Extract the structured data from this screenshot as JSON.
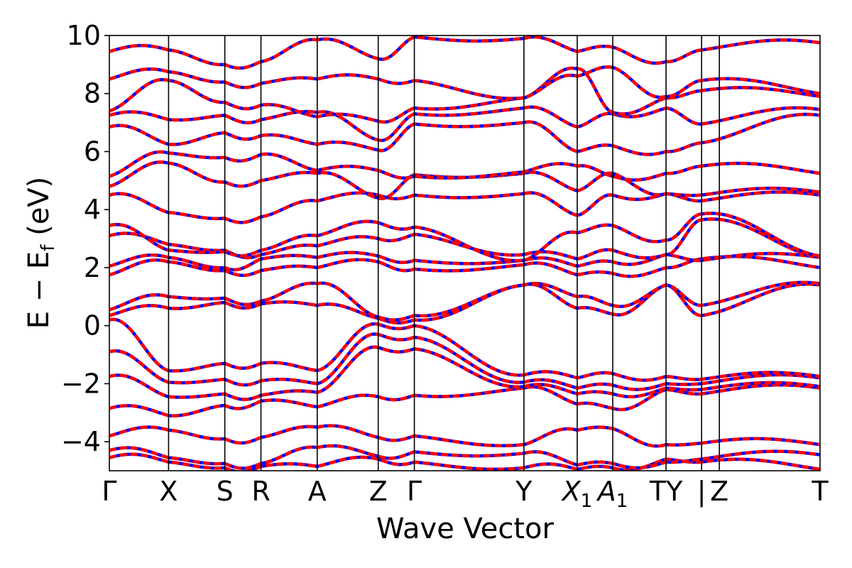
{
  "chart_data": {
    "type": "line",
    "title": "",
    "xlabel": "Wave Vector",
    "ylabel": "E − E_f (eV)",
    "ylabel_main": "E − E",
    "ylabel_sub": "f",
    "ylabel_unit": " (eV)",
    "ylim": [
      -5,
      10
    ],
    "yticks": [
      10,
      8,
      6,
      4,
      2,
      0,
      -2,
      -4
    ],
    "ytick_labels": [
      "10",
      "8",
      "6",
      "4",
      "2",
      "0",
      "−2",
      "−4"
    ],
    "grid": false,
    "legend": "none",
    "series_colors": {
      "outer": "#0000ff",
      "inner": "#ff0000"
    },
    "kpoints": [
      {
        "label": "Γ",
        "x": 0.0
      },
      {
        "label": "X",
        "x": 1.0
      },
      {
        "label": "S",
        "x": 1.95
      },
      {
        "label": "R",
        "x": 2.56
      },
      {
        "label": "A",
        "x": 3.51
      },
      {
        "label": "Z",
        "x": 4.54
      },
      {
        "label": "Γ",
        "x": 5.15
      },
      {
        "label": "Y",
        "x": 7.0
      },
      {
        "label": "X",
        "sub": "1",
        "x": 7.9
      },
      {
        "label": "A",
        "sub": "1",
        "x": 8.5
      },
      {
        "label": "TY",
        "x": 9.4
      },
      {
        "label": "|",
        "x": 10.0
      },
      {
        "label": "Z",
        "x": 10.3
      },
      {
        "label": "T",
        "x": 12.0
      }
    ],
    "segment_breaks": [
      1.0,
      1.95,
      2.56,
      3.51,
      4.54,
      5.15,
      7.0,
      7.9,
      8.5,
      9.4,
      10.0
    ],
    "xlim": [
      0,
      12
    ],
    "bands": [
      [
        -4.55,
        -4.7,
        -4.9,
        -4.85,
        -4.85,
        -4.6,
        -4.7,
        -4.9,
        -4.95,
        -4.9,
        -4.6,
        -4.7,
        -4.95
      ],
      [
        -4.3,
        -4.55,
        -4.75,
        -4.75,
        -4.2,
        -4.5,
        -4.35,
        -4.4,
        -4.8,
        -4.75,
        -4.7,
        -4.6,
        -4.45
      ],
      [
        -3.8,
        -3.6,
        -3.9,
        -3.85,
        -3.5,
        -3.85,
        -3.8,
        -4.1,
        -3.6,
        -3.55,
        -4.1,
        -4.05,
        -4.1
      ],
      [
        -2.85,
        -3.1,
        -2.75,
        -2.6,
        -2.8,
        -2.45,
        -2.4,
        -2.15,
        -2.7,
        -2.85,
        -2.2,
        -2.35,
        -2.15
      ],
      [
        -1.75,
        -2.45,
        -2.35,
        -2.4,
        -2.3,
        -0.75,
        -0.8,
        -2.1,
        -2.35,
        -2.35,
        -2.15,
        -2.2,
        -2.1
      ],
      [
        -0.9,
        -1.95,
        -1.85,
        -1.9,
        -2.0,
        -0.3,
        -0.4,
        -1.95,
        -2.15,
        -2.05,
        -2.0,
        -2.0,
        -1.8
      ],
      [
        0.2,
        -1.55,
        -1.3,
        -1.3,
        -1.55,
        0.05,
        0.0,
        -1.7,
        -1.8,
        -1.65,
        -1.75,
        -1.85,
        -1.75
      ],
      [
        0.35,
        0.6,
        0.8,
        0.75,
        0.7,
        0.25,
        0.2,
        1.4,
        0.6,
        0.4,
        1.4,
        0.35,
        1.4
      ],
      [
        0.55,
        1.0,
        0.95,
        0.85,
        1.45,
        0.3,
        0.35,
        1.4,
        1.0,
        0.7,
        1.4,
        0.7,
        1.45
      ],
      [
        1.75,
        2.2,
        1.9,
        1.9,
        2.0,
        2.2,
        1.95,
        2.1,
        1.75,
        1.8,
        2.0,
        2.3,
        2.0
      ],
      [
        2.05,
        2.35,
        2.0,
        2.3,
        2.35,
        2.4,
        2.25,
        2.25,
        2.05,
        2.2,
        2.45,
        2.25,
        2.35
      ],
      [
        3.1,
        2.8,
        2.6,
        2.45,
        2.75,
        3.0,
        3.15,
        2.45,
        2.3,
        2.6,
        2.45,
        3.65,
        2.35
      ],
      [
        3.45,
        2.6,
        2.55,
        2.6,
        3.1,
        3.55,
        3.4,
        2.25,
        3.2,
        3.45,
        2.95,
        3.85,
        2.4
      ],
      [
        4.5,
        3.9,
        3.7,
        3.75,
        4.3,
        4.5,
        4.5,
        4.55,
        3.8,
        4.5,
        4.55,
        4.3,
        4.5
      ],
      [
        4.8,
        5.6,
        4.95,
        5.0,
        5.25,
        4.4,
        5.2,
        5.25,
        4.65,
        5.25,
        4.55,
        4.5,
        4.6
      ],
      [
        5.15,
        5.95,
        5.8,
        5.9,
        5.35,
        5.35,
        5.15,
        5.3,
        5.5,
        5.15,
        5.25,
        5.5,
        5.25
      ],
      [
        6.85,
        6.25,
        6.65,
        6.55,
        6.25,
        6.05,
        6.95,
        7.0,
        6.0,
        6.2,
        6.0,
        6.3,
        7.25
      ],
      [
        7.25,
        7.1,
        7.25,
        7.1,
        7.35,
        6.4,
        7.3,
        7.5,
        6.85,
        7.3,
        7.5,
        6.95,
        7.45
      ],
      [
        7.4,
        8.45,
        7.7,
        7.6,
        7.2,
        7.05,
        7.5,
        7.85,
        8.85,
        7.35,
        7.85,
        8.1,
        7.9
      ],
      [
        8.5,
        8.75,
        8.4,
        8.35,
        8.5,
        8.5,
        8.45,
        7.85,
        8.6,
        8.9,
        7.9,
        8.45,
        8.0
      ],
      [
        9.45,
        9.5,
        9.0,
        9.1,
        9.85,
        9.2,
        9.95,
        9.9,
        9.45,
        9.6,
        9.1,
        9.5,
        9.75
      ]
    ]
  }
}
